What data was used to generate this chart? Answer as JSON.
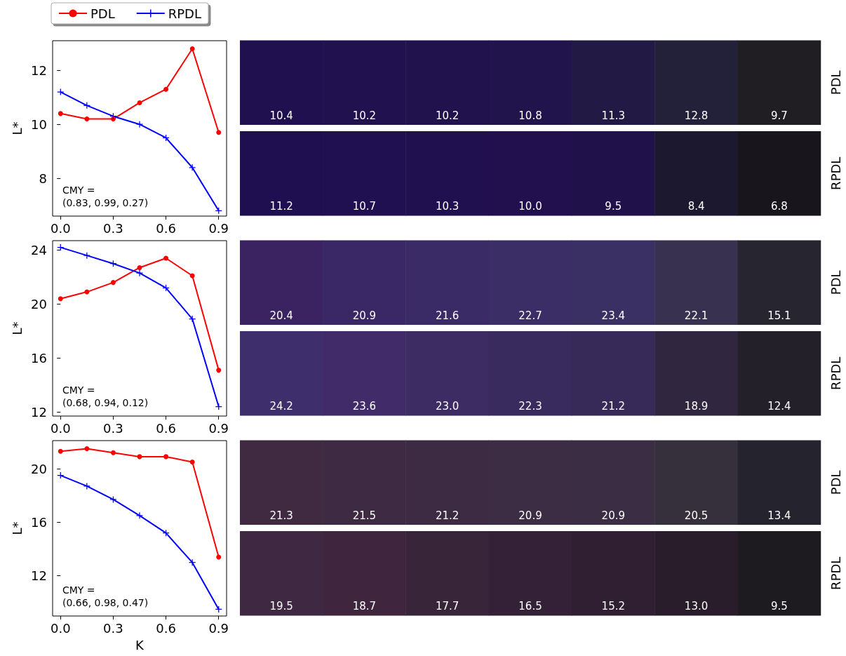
{
  "chart_data": [
    {
      "type": "line",
      "ylabel": "L*",
      "x": [
        0,
        0.15,
        0.3,
        0.45,
        0.6,
        0.75,
        0.9
      ],
      "xlim": [
        -0.045,
        0.945
      ],
      "xticks": [
        {
          "value": 0,
          "label": "0.0"
        },
        {
          "value": 0.3,
          "label": "0.3"
        },
        {
          "value": 0.6,
          "label": "0.6"
        },
        {
          "value": 0.9,
          "label": "0.9"
        }
      ],
      "ylim": [
        6.6,
        13.1
      ],
      "yticks": [
        8,
        10,
        12
      ],
      "grid": false,
      "legend": "top left",
      "annotations": [
        "CMY =\n(0.83, 0.99, 0.27)"
      ],
      "series": [
        {
          "name": "PDL",
          "color": "#ff0000",
          "marker": "circle",
          "values": [
            10.4,
            10.2,
            10.2,
            10.8,
            11.3,
            12.8,
            9.7
          ]
        },
        {
          "name": "RPDL",
          "color": "#0000ff",
          "marker": "cross",
          "values": [
            11.2,
            10.7,
            10.3,
            10.0,
            9.5,
            8.4,
            6.8
          ]
        }
      ]
    },
    {
      "type": "heatmap",
      "categories": [
        null,
        null,
        null,
        null,
        null,
        null,
        null
      ],
      "y_categories": [
        "PDL",
        "RPDL"
      ],
      "data_labels": true,
      "cells": [
        [
          10.4,
          10.2,
          10.2,
          10.8,
          11.3,
          12.8,
          9.7
        ],
        [
          11.2,
          10.7,
          10.3,
          10.0,
          9.5,
          8.4,
          6.8
        ]
      ],
      "cell_labels": [
        [
          "10.4",
          "10.2",
          "10.2",
          "10.8",
          "11.3",
          "12.8",
          "9.7"
        ],
        [
          "11.2",
          "10.7",
          "10.3",
          "10.0",
          "9.5",
          "8.4",
          "6.8"
        ]
      ],
      "colors": [
        [
          "#20104f",
          "#21114f",
          "#21124d",
          "#21144c",
          "#221a45",
          "#23213a",
          "#201e23"
        ],
        [
          "#1f0f50",
          "#200f51",
          "#20104f",
          "#21104d",
          "#21114b",
          "#1c1830",
          "#18161c"
        ]
      ]
    },
    {
      "type": "line",
      "ylabel": "L*",
      "x": [
        0,
        0.15,
        0.3,
        0.45,
        0.6,
        0.75,
        0.9
      ],
      "xlim": [
        -0.045,
        0.945
      ],
      "xticks": [
        {
          "value": 0,
          "label": "0.0"
        },
        {
          "value": 0.3,
          "label": "0.3"
        },
        {
          "value": 0.6,
          "label": "0.6"
        },
        {
          "value": 0.9,
          "label": "0.9"
        }
      ],
      "ylim": [
        11.7,
        24.7
      ],
      "yticks": [
        12,
        16,
        20,
        24
      ],
      "grid": false,
      "legend": false,
      "annotations": [
        "CMY =\n(0.68, 0.94, 0.12)"
      ],
      "series": [
        {
          "color": "#ff0000",
          "marker": "circle",
          "values": [
            20.4,
            20.9,
            21.6,
            22.7,
            23.4,
            22.1,
            15.1
          ]
        },
        {
          "color": "#0000ff",
          "marker": "cross",
          "values": [
            24.2,
            23.6,
            23.0,
            22.3,
            21.2,
            18.9,
            12.4
          ]
        }
      ]
    },
    {
      "type": "heatmap",
      "categories": [
        null,
        null,
        null,
        null,
        null,
        null,
        null
      ],
      "y_categories": [
        "PDL",
        "RPDL"
      ],
      "data_labels": true,
      "cells": [
        [
          20.4,
          20.9,
          21.6,
          22.7,
          23.4,
          22.1,
          15.1
        ],
        [
          24.2,
          23.6,
          23.0,
          22.3,
          21.2,
          18.9,
          12.4
        ]
      ],
      "cell_labels": [
        [
          "20.4",
          "20.9",
          "21.6",
          "22.7",
          "23.4",
          "22.1",
          "15.1"
        ],
        [
          "24.2",
          "23.6",
          "23.0",
          "22.3",
          "21.2",
          "18.9",
          "12.4"
        ]
      ],
      "colors": [
        [
          "#3b2362",
          "#3a2765",
          "#3a2a66",
          "#3b2e67",
          "#3b3064",
          "#383250",
          "#27252f"
        ],
        [
          "#3e2e6c",
          "#412b69",
          "#3c2c63",
          "#3a2b5e",
          "#372a58",
          "#30263f",
          "#232029"
        ]
      ]
    },
    {
      "type": "line",
      "xlabel": "K",
      "ylabel": "L*",
      "x": [
        0,
        0.15,
        0.3,
        0.45,
        0.6,
        0.75,
        0.9
      ],
      "xlim": [
        -0.045,
        0.945
      ],
      "xticks": [
        {
          "value": 0,
          "label": "0.0"
        },
        {
          "value": 0.3,
          "label": "0.3"
        },
        {
          "value": 0.6,
          "label": "0.6"
        },
        {
          "value": 0.9,
          "label": "0.9"
        }
      ],
      "ylim": [
        9.0,
        22.1
      ],
      "yticks": [
        12,
        16,
        20
      ],
      "grid": false,
      "legend": false,
      "annotations": [
        "CMY =\n(0.66, 0.98, 0.47)"
      ],
      "series": [
        {
          "color": "#ff0000",
          "marker": "circle",
          "values": [
            21.3,
            21.5,
            21.2,
            20.9,
            20.9,
            20.5,
            13.4
          ]
        },
        {
          "color": "#0000ff",
          "marker": "cross",
          "values": [
            19.5,
            18.7,
            17.7,
            16.5,
            15.2,
            13.0,
            9.5
          ]
        }
      ]
    },
    {
      "type": "heatmap",
      "categories": [
        null,
        null,
        null,
        null,
        null,
        null,
        null
      ],
      "y_categories": [
        "PDL",
        "RPDL"
      ],
      "data_labels": true,
      "cells": [
        [
          21.3,
          21.5,
          21.2,
          20.9,
          20.9,
          20.5,
          13.4
        ],
        [
          19.5,
          18.7,
          17.7,
          16.5,
          15.2,
          13.0,
          9.5
        ]
      ],
      "cell_labels": [
        [
          "21.3",
          "21.5",
          "21.2",
          "20.9",
          "20.9",
          "20.5",
          "13.4"
        ],
        [
          "19.5",
          "18.7",
          "17.7",
          "16.5",
          "15.2",
          "13.0",
          "9.5"
        ]
      ],
      "colors": [
        [
          "#402a41",
          "#3f2a43",
          "#3d2b43",
          "#3c2c44",
          "#3b2e44",
          "#36303d",
          "#25232d"
        ],
        [
          "#3f2841",
          "#3f263e",
          "#39253a",
          "#352137",
          "#301f33",
          "#2a1d2b",
          "#1d1b20"
        ]
      ]
    }
  ]
}
